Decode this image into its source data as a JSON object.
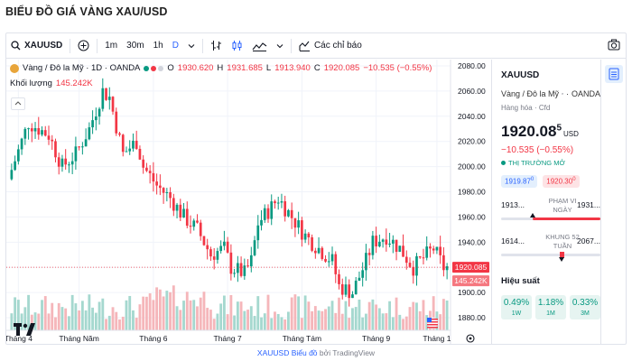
{
  "page": {
    "title": "BIỂU ĐỒ GIÁ VÀNG XAU/USD"
  },
  "toolbar": {
    "symbol": "XAUUSD",
    "intervals": [
      "1m",
      "30m",
      "1h",
      "D"
    ],
    "active_interval": "D",
    "indicators_label": "Các chỉ báo",
    "icons": [
      "search-icon",
      "plus-icon",
      "chevron-down-icon",
      "bar-style-icon",
      "candle-style-icon",
      "area-style-icon",
      "indicators-icon",
      "camera-icon"
    ]
  },
  "legend": {
    "name": "Vàng / Đô la Mỹ · 1D · OANDA",
    "o_label": "O",
    "o_value": "1930.620",
    "h_label": "H",
    "h_value": "1931.685",
    "l_label": "L",
    "l_value": "1913.940",
    "c_label": "C",
    "c_value": "1920.085",
    "change": "−10.535 (−0.55%)",
    "volume_label": "Khối lượng",
    "volume_value": "145.242K",
    "dot_colors": [
      "#089981",
      "#f23645",
      "#d1d4dc"
    ]
  },
  "chart_data": {
    "type": "candlestick",
    "instrument": "XAUUSD",
    "price_axis": {
      "min": 1870,
      "max": 2085,
      "ticks": [
        2080,
        2060,
        2040,
        2020,
        2000,
        1980,
        1960,
        1940,
        1920,
        1900,
        1880
      ]
    },
    "time_axis_labels": [
      "Tháng 4",
      "Tháng Năm",
      "Tháng 6",
      "Tháng 7",
      "Tháng Tám",
      "Tháng 9",
      "Tháng 1"
    ],
    "last_price_label": "1920.085",
    "last_volume_label": "145.242K",
    "up_color": "#089981",
    "down_color": "#f23645",
    "grid": true,
    "candle_count": 130,
    "path": [
      [
        0,
        1990
      ],
      [
        6,
        2035
      ],
      [
        12,
        2025
      ],
      [
        16,
        2000
      ],
      [
        20,
        2010
      ],
      [
        24,
        2030
      ],
      [
        28,
        2060
      ],
      [
        30,
        2055
      ],
      [
        34,
        2010
      ],
      [
        38,
        2020
      ],
      [
        40,
        2000
      ],
      [
        44,
        1985
      ],
      [
        48,
        1975
      ],
      [
        52,
        1960
      ],
      [
        56,
        1950
      ],
      [
        60,
        1930
      ],
      [
        64,
        1935
      ],
      [
        66,
        1920
      ],
      [
        70,
        1915
      ],
      [
        72,
        1925
      ],
      [
        74,
        1955
      ],
      [
        78,
        1968
      ],
      [
        80,
        1975
      ],
      [
        84,
        1960
      ],
      [
        88,
        1945
      ],
      [
        92,
        1935
      ],
      [
        96,
        1925
      ],
      [
        98,
        1905
      ],
      [
        102,
        1900
      ],
      [
        106,
        1925
      ],
      [
        108,
        1940
      ],
      [
        112,
        1945
      ],
      [
        116,
        1935
      ],
      [
        120,
        1920
      ],
      [
        124,
        1930
      ],
      [
        126,
        1935
      ],
      [
        129,
        1920
      ]
    ]
  },
  "side": {
    "symbol": "XAUUSD",
    "name": "Vàng / Đô la Mỹ",
    "exchange": "OANDA",
    "category": "Hàng hóa",
    "category_sep": "·",
    "category_type": "Cfd",
    "price_main": "1920.08",
    "price_sup": "5",
    "currency": "USD",
    "change": "−10.535 (−0.55%)",
    "market_status": "THỊ TRƯỜNG MỞ",
    "bid": "1919.87",
    "bid_sup": "0",
    "ask": "1920.30",
    "ask_sup": "0",
    "day_low": "1913...",
    "day_high": "1931...",
    "day_range_label": "PHẠM VI NGÀY",
    "day_range_position": 0.35,
    "w52_low": "1614...",
    "w52_high": "2067...",
    "w52_label": "KHUNG 52 TUẦN",
    "w52_position": 0.67,
    "performance_title": "Hiệu suất",
    "performance": [
      {
        "value": "0.49%",
        "period": "1W"
      },
      {
        "value": "1.18%",
        "period": "1M"
      },
      {
        "value": "0.33%",
        "period": "3M"
      }
    ]
  },
  "footer": {
    "link": "XAUUSD Biểu đồ",
    "suffix": " bởi TradingView"
  }
}
